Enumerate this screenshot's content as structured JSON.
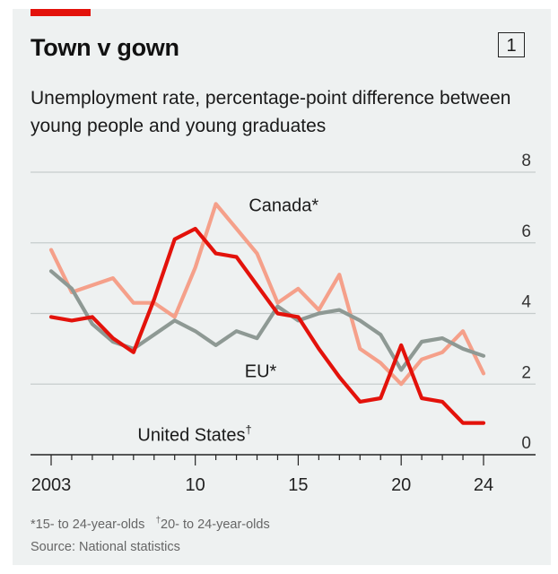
{
  "header": {
    "title": "Town v gown",
    "chart_number": "1",
    "subtitle": "Unemployment rate, percentage-point difference between young people and young graduates"
  },
  "footnotes": {
    "note_star": "*15- to 24-year-olds",
    "note_dagger_mark": "†",
    "note_dagger": "20- to 24-year-olds",
    "source": "Source: National statistics"
  },
  "chart_data": {
    "type": "line",
    "title": "Town v gown",
    "subtitle": "Unemployment rate, percentage-point difference between young people and young graduates",
    "xlabel": "",
    "ylabel": "",
    "xlim": [
      2003,
      2025
    ],
    "ylim": [
      0,
      8
    ],
    "x_ticks": [
      2003,
      2010,
      2015,
      2020,
      2024
    ],
    "x_tick_labels": [
      "2003",
      "10",
      "15",
      "20",
      "24"
    ],
    "y_ticks": [
      0,
      2,
      4,
      6,
      8
    ],
    "y_tick_labels": [
      "0",
      "2",
      "4",
      "6",
      "8"
    ],
    "grid": true,
    "colors": {
      "accent": "#e3120b",
      "united_states": "#e3120b",
      "canada": "#f5a08a",
      "eu": "#8e9994",
      "panel": "#eef1f1"
    },
    "series": [
      {
        "name": "Canada*",
        "color": "#f5a08a",
        "x": [
          2003,
          2004,
          2005,
          2006,
          2007,
          2008,
          2009,
          2010,
          2011,
          2012,
          2013,
          2014,
          2015,
          2016,
          2017,
          2018,
          2019,
          2020,
          2021,
          2022,
          2023,
          2024
        ],
        "values": [
          5.8,
          4.6,
          4.8,
          5.0,
          4.3,
          4.3,
          3.9,
          5.3,
          7.1,
          6.4,
          5.7,
          4.3,
          4.7,
          4.1,
          5.1,
          3.0,
          2.6,
          2.0,
          2.7,
          2.9,
          3.5,
          2.3
        ]
      },
      {
        "name": "EU*",
        "color": "#8e9994",
        "x": [
          2003,
          2004,
          2005,
          2006,
          2007,
          2008,
          2009,
          2010,
          2011,
          2012,
          2013,
          2014,
          2015,
          2016,
          2017,
          2018,
          2019,
          2020,
          2021,
          2022,
          2023,
          2024
        ],
        "values": [
          5.2,
          4.7,
          3.7,
          3.2,
          3.0,
          3.4,
          3.8,
          3.5,
          3.1,
          3.5,
          3.3,
          4.2,
          3.8,
          4.0,
          4.1,
          3.8,
          3.4,
          2.4,
          3.2,
          3.3,
          3.0,
          2.8
        ]
      },
      {
        "name": "United States†",
        "color": "#e3120b",
        "x": [
          2003,
          2004,
          2005,
          2006,
          2007,
          2008,
          2009,
          2010,
          2011,
          2012,
          2013,
          2014,
          2015,
          2016,
          2017,
          2018,
          2019,
          2020,
          2021,
          2022,
          2023,
          2024
        ],
        "values": [
          3.9,
          3.8,
          3.9,
          3.3,
          2.9,
          4.4,
          6.1,
          6.4,
          5.7,
          5.6,
          4.8,
          4.0,
          3.9,
          3.0,
          2.2,
          1.5,
          1.6,
          3.1,
          1.6,
          1.5,
          0.9,
          0.9
        ]
      }
    ],
    "series_labels": [
      {
        "text": "Canada*",
        "anchor_x": 2012.6,
        "anchor_y": 6.9
      },
      {
        "text": "EU*",
        "anchor_x": 2012.4,
        "anchor_y": 2.2
      },
      {
        "text": "United States",
        "dagger": "†",
        "anchor_x": 2007.2,
        "anchor_y": 0.4
      }
    ]
  }
}
